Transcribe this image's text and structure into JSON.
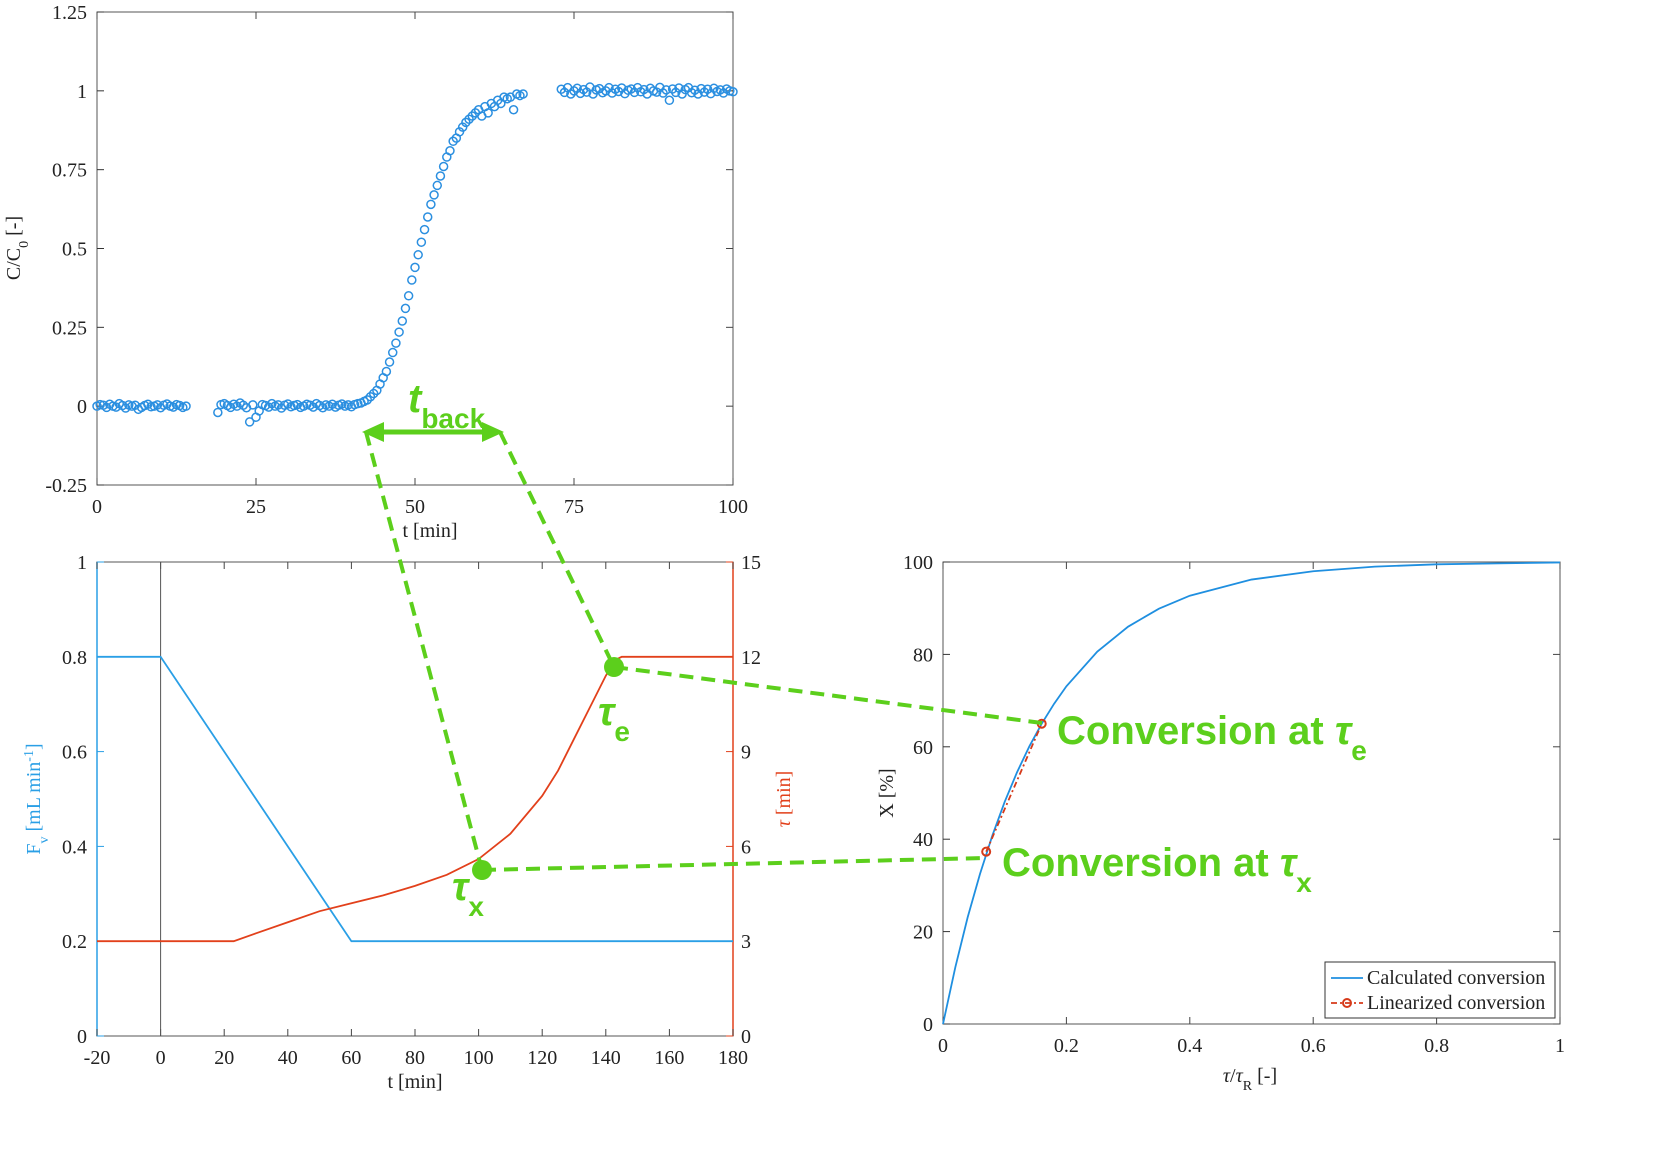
{
  "chart_data": [
    {
      "type": "scatter",
      "xlabel": "t [min]",
      "ylabel": [
        "C/C",
        "0",
        " [-]"
      ],
      "color": "#2b8fe0",
      "xlim": [
        0,
        100
      ],
      "xticks": [
        0,
        25,
        50,
        75,
        100
      ],
      "ylim": [
        -0.25,
        1.25
      ],
      "yticks": [
        -0.25,
        0,
        0.25,
        0.5,
        0.75,
        1,
        1.25
      ],
      "x": [
        0,
        0.5,
        1,
        1.5,
        2,
        2.5,
        3,
        3.5,
        4,
        4.5,
        5,
        5.5,
        6,
        6.5,
        7,
        7.5,
        8,
        8.5,
        9,
        9.5,
        10,
        10.5,
        11,
        11.5,
        12,
        12.5,
        13,
        13.5,
        14,
        19,
        19.5,
        20,
        20.5,
        21,
        21.5,
        22,
        22.5,
        23,
        23.5,
        24,
        24.5,
        25,
        25.5,
        26,
        26.5,
        27,
        27.5,
        28,
        28.5,
        29,
        29.5,
        30,
        30.5,
        31,
        31.5,
        32,
        32.5,
        33,
        33.5,
        34,
        34.5,
        35,
        35.5,
        36,
        36.5,
        37,
        37.5,
        38,
        38.5,
        39,
        39.5,
        40,
        40.5,
        41,
        41.5,
        42,
        42.5,
        43,
        43.5,
        44,
        44.5,
        45,
        45.5,
        46,
        46.5,
        47,
        47.5,
        48,
        48.5,
        49,
        49.5,
        50,
        50.5,
        51,
        51.5,
        52,
        52.5,
        53,
        53.5,
        54,
        54.5,
        55,
        55.5,
        56,
        56.5,
        57,
        57.5,
        58,
        58.5,
        59,
        59.5,
        60,
        60.5,
        61,
        61.5,
        62,
        62.5,
        63,
        63.5,
        64,
        64.5,
        65,
        65.5,
        66,
        66.5,
        67,
        73,
        73.5,
        74,
        74.5,
        75,
        75.5,
        76,
        76.5,
        77,
        77.5,
        78,
        78.5,
        79,
        79.5,
        80,
        80.5,
        81,
        81.5,
        82,
        82.5,
        83,
        83.5,
        84,
        84.5,
        85,
        85.5,
        86,
        86.5,
        87,
        87.5,
        88,
        88.5,
        89,
        89.5,
        90,
        90.5,
        91,
        91.5,
        92,
        92.5,
        93,
        93.5,
        94,
        94.5,
        95,
        95.5,
        96,
        96.5,
        97,
        97.5,
        98,
        98.5,
        99,
        99.5,
        100
      ],
      "values": [
        0,
        0.005,
        0.003,
        -0.004,
        0.006,
        0,
        -0.003,
        0.008,
        0.002,
        -0.006,
        0.004,
        0,
        0.003,
        -0.01,
        -0.004,
        0.002,
        0.006,
        -0.002,
        0,
        0.004,
        -0.005,
        0.003,
        0.007,
        0,
        -0.003,
        0.005,
        0.002,
        -0.004,
        0,
        -0.02,
        0.005,
        0.008,
        0.002,
        -0.004,
        0.006,
        0,
        0.01,
        0.003,
        -0.005,
        -0.05,
        0.004,
        -0.035,
        -0.015,
        0.005,
        0.002,
        -0.003,
        0.008,
        0,
        0.004,
        -0.006,
        0.003,
        0.007,
        -0.002,
        0.002,
        0.005,
        -0.004,
        0,
        0.006,
        0.003,
        -0.003,
        0.008,
        0.002,
        -0.005,
        0.004,
        0,
        0.006,
        -0.003,
        0.003,
        0.007,
        0,
        0.004,
        -0.002,
        0.005,
        0.008,
        0.01,
        0.015,
        0.02,
        0.03,
        0.04,
        0.05,
        0.07,
        0.09,
        0.11,
        0.14,
        0.17,
        0.2,
        0.235,
        0.27,
        0.31,
        0.35,
        0.4,
        0.44,
        0.48,
        0.52,
        0.56,
        0.6,
        0.64,
        0.67,
        0.7,
        0.73,
        0.76,
        0.79,
        0.81,
        0.84,
        0.85,
        0.87,
        0.885,
        0.9,
        0.91,
        0.92,
        0.93,
        0.94,
        0.92,
        0.95,
        0.93,
        0.96,
        0.95,
        0.97,
        0.96,
        0.98,
        0.975,
        0.98,
        0.94,
        0.99,
        0.985,
        0.99,
        1.005,
        0.995,
        1.01,
        0.99,
        1,
        1.008,
        0.992,
        1.004,
        0.996,
        1.012,
        0.99,
        1.003,
        1.007,
        0.994,
        1,
        1.01,
        0.993,
        1.005,
        0.998,
        1.009,
        0.991,
        1.002,
        1.006,
        0.995,
        1.01,
        0.997,
        1.004,
        0.99,
        1.008,
        1,
        0.996,
        1.011,
        0.993,
        1.003,
        0.97,
        1.006,
        0.995,
        1.009,
        0.99,
        1.004,
        1.01,
        0.994,
        1.002,
        0.99,
        1.007,
        0.996,
        1.005,
        0.991,
        1.008,
        0.998,
        1.003,
        0.993,
        1.006,
        1,
        0.997
      ]
    },
    {
      "type": "line",
      "xlabel": "t [min]",
      "ylabel": [
        "F",
        "v",
        " [mL min",
        "-1",
        "]"
      ],
      "y2label": [
        "τ",
        " [min]"
      ],
      "xlim": [
        -20,
        180
      ],
      "xticks": [
        -20,
        0,
        20,
        40,
        60,
        80,
        100,
        120,
        140,
        160,
        180
      ],
      "ylim": [
        0,
        1
      ],
      "yticks": [
        0,
        0.2,
        0.4,
        0.6,
        0.8,
        1
      ],
      "y2lim": [
        0,
        15
      ],
      "y2ticks": [
        0,
        3,
        6,
        9,
        12,
        15
      ],
      "vline": 0,
      "series": [
        {
          "color": "#2a9fe6",
          "x": [
            -20,
            0,
            60,
            180
          ],
          "values": [
            0.8,
            0.8,
            0.2,
            0.2
          ]
        },
        {
          "color": "#e2401b",
          "axis": "y2",
          "x": [
            -20,
            0,
            23,
            30,
            40,
            50,
            60,
            70,
            80,
            90,
            100,
            110,
            120,
            125,
            130,
            135,
            140,
            143,
            145,
            180
          ],
          "values": [
            3,
            3,
            3,
            3.25,
            3.6,
            3.95,
            4.2,
            4.45,
            4.75,
            5.1,
            5.6,
            6.4,
            7.6,
            8.4,
            9.4,
            10.4,
            11.4,
            11.9,
            12,
            12
          ]
        }
      ]
    },
    {
      "type": "line",
      "xlabel": [
        "τ",
        "/",
        "τ",
        "R",
        " [-]"
      ],
      "ylabel": "X [%]",
      "legend": "lower right",
      "xlim": [
        0,
        1
      ],
      "xticks": [
        0,
        0.2,
        0.4,
        0.6,
        0.8,
        1
      ],
      "ylim": [
        0,
        100
      ],
      "yticks": [
        0,
        20,
        40,
        60,
        80,
        100
      ],
      "series": [
        {
          "name": "Calculated conversion",
          "color": "#1f8fe0",
          "x": [
            0,
            0.02,
            0.04,
            0.06,
            0.08,
            0.1,
            0.12,
            0.14,
            0.16,
            0.18,
            0.2,
            0.25,
            0.3,
            0.35,
            0.4,
            0.5,
            0.6,
            0.7,
            0.8,
            0.9,
            1
          ],
          "values": [
            0,
            12.3,
            23.1,
            32.5,
            40.8,
            48.1,
            54.5,
            60.1,
            65,
            69.3,
            73.1,
            80.6,
            86,
            89.9,
            92.7,
            96.2,
            98,
            99,
            99.5,
            99.7,
            99.9
          ]
        },
        {
          "name": "Linearized conversion",
          "color": "#d63a1a",
          "marker": "o",
          "dash": "dashdot",
          "x": [
            0.07,
            0.16
          ],
          "values": [
            37.3,
            65
          ]
        }
      ]
    }
  ],
  "annotations": {
    "t_back": [
      "t",
      "back"
    ],
    "tau_e": [
      "τ",
      "e"
    ],
    "tau_x": [
      "τ",
      "x"
    ],
    "conv_e": [
      "Conversion at ",
      "τ",
      "e"
    ],
    "conv_x": [
      "Conversion at ",
      "τ",
      "x"
    ],
    "color": "#5ccf1c"
  }
}
